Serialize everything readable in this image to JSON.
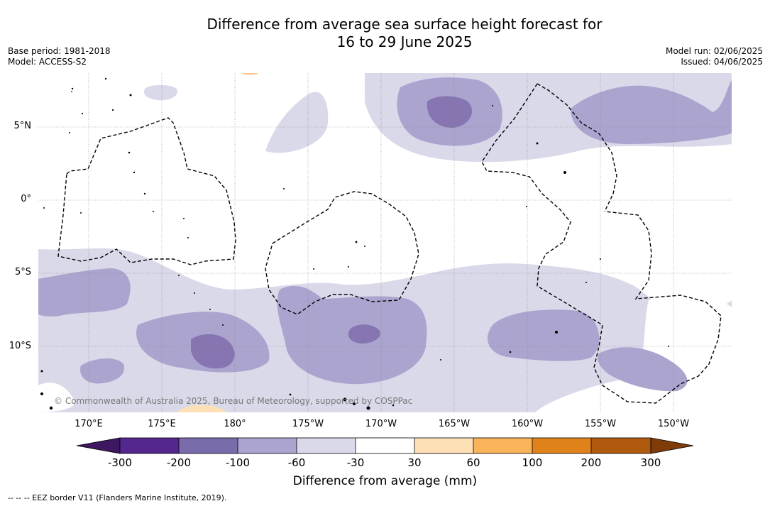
{
  "title_line1": "Difference from average sea surface height forecast for",
  "title_line2": "16 to 29 June 2025",
  "base_period": "Base period: 1981-2018",
  "model": "Model: ACCESS-S2",
  "model_run": "Model run: 02/06/2025",
  "issued": "Issued: 04/06/2025",
  "latitude_labels": [
    "5°N",
    "0°",
    "5°S",
    "10°S"
  ],
  "longitude_labels": [
    "170°E",
    "175°E",
    "180°",
    "175°W",
    "170°W",
    "165°W",
    "160°W",
    "155°W",
    "150°W"
  ],
  "copyright": "© Commonwealth of Australia 2025, Bureau of Meteorology, supported by COSPPac",
  "legend": {
    "title": "Difference from average (mm)",
    "ticks": [
      "-300",
      "-200",
      "-100",
      "-60",
      "-30",
      "30",
      "60",
      "100",
      "200",
      "300"
    ],
    "colors": [
      "#3d1760",
      "#54278f",
      "#7a6bab",
      "#aba4cf",
      "#d9d9ea",
      "#ffffff",
      "#fde0b6",
      "#f8b35b",
      "#e0821a",
      "#b05a0f",
      "#7f3b08"
    ]
  },
  "footnote": "--  --  -- EEZ border V11 (Flanders Marine Institute, 2019)."
}
